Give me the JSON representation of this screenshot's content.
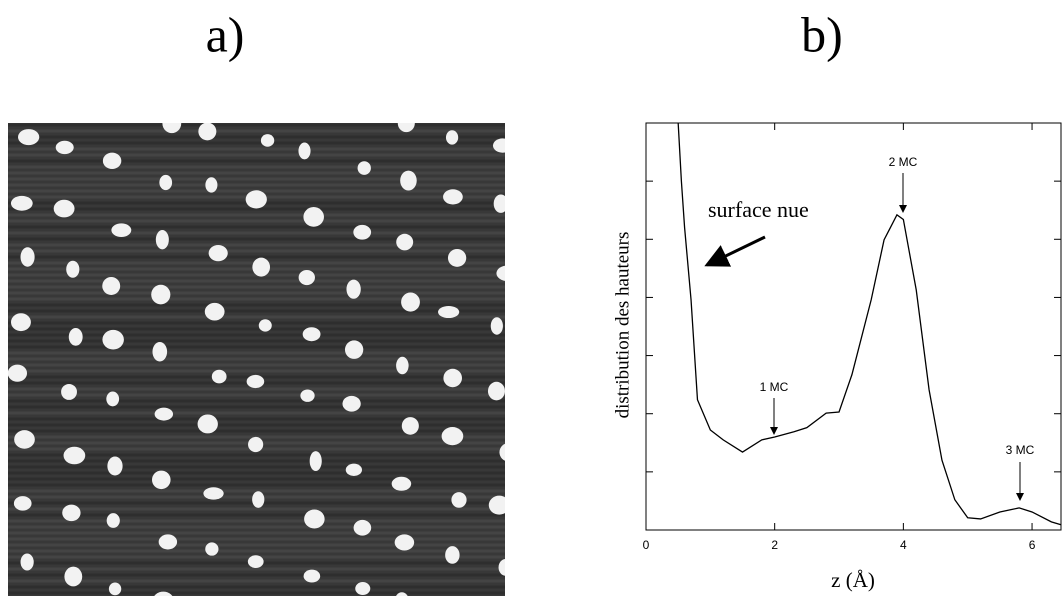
{
  "panel_labels": [
    "a)",
    "b)"
  ],
  "chart_data": {
    "type": "line",
    "xlabel": "z (Å)",
    "ylabel": "distribution des hauteurs",
    "x": [
      0.5,
      0.55,
      0.6,
      0.7,
      0.8,
      1.0,
      1.2,
      1.5,
      1.8,
      2.0,
      2.3,
      2.5,
      2.8,
      3.0,
      3.2,
      3.5,
      3.7,
      3.9,
      4.0,
      4.2,
      4.4,
      4.6,
      4.8,
      5.0,
      5.2,
      5.5,
      5.8,
      6.0,
      6.3,
      6.45
    ],
    "series": [
      {
        "color": "#000000",
        "values": [
          7.0,
          6.0,
          5.2,
          3.96,
          2.24,
          1.72,
          1.55,
          1.34,
          1.55,
          1.6,
          1.69,
          1.76,
          2.01,
          2.03,
          2.67,
          3.96,
          4.99,
          5.42,
          5.34,
          4.13,
          2.41,
          1.2,
          0.52,
          0.21,
          0.19,
          0.31,
          0.38,
          0.31,
          0.14,
          0.09
        ]
      }
    ],
    "xlim": [
      0,
      6.45
    ],
    "ylim": [
      0,
      7
    ],
    "xticks": [
      0,
      2,
      4,
      6
    ],
    "yticks": [
      1,
      2,
      3,
      4,
      5,
      6
    ],
    "annotations": [
      "1 MC",
      "2 MC",
      "3 MC",
      "surface nue"
    ]
  }
}
